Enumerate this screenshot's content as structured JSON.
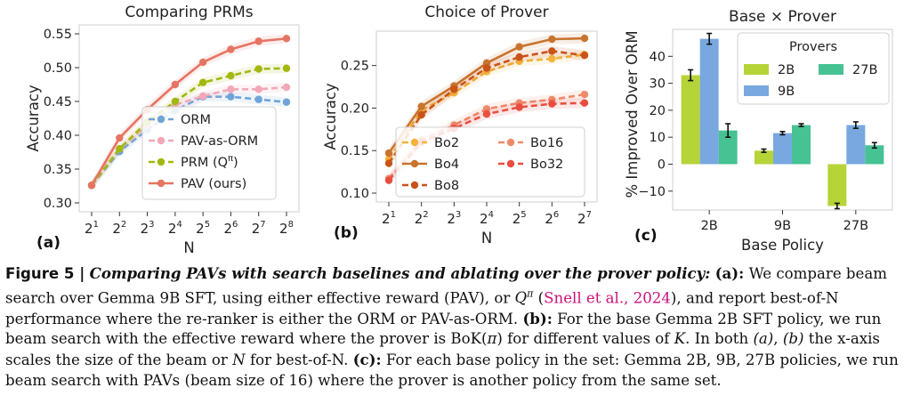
{
  "colors": {
    "orm": "#6fa4d8",
    "pav_orm": "#f3a8b8",
    "prm": "#a3b80f",
    "pav": "#e67462",
    "bo2": "#f3b33c",
    "bo4": "#c8742e",
    "bo8": "#c8541a",
    "bo16": "#ee8a6a",
    "bo32": "#e84e40",
    "p2b": "#b6d338",
    "p9b": "#78a8df",
    "p27b": "#47c293",
    "link": "#c8107a"
  },
  "chart_data": [
    {
      "type": "line",
      "title": "Comparing PRMs",
      "panel_label": "(a)",
      "xlabel": "N",
      "ylabel": "Accuracy",
      "x": [
        1,
        2,
        3,
        4,
        5,
        6,
        7,
        8
      ],
      "xticks": [
        "2",
        "2",
        "2",
        "2",
        "2",
        "2",
        "2",
        "2"
      ],
      "xtick_exponents": [
        "1",
        "2",
        "3",
        "4",
        "5",
        "6",
        "7",
        "8"
      ],
      "ylim": [
        0.3,
        0.55
      ],
      "yticks": [
        0.3,
        0.35,
        0.4,
        0.45,
        0.5,
        0.55
      ],
      "ytick_labels": [
        "0.30",
        "0.35",
        "0.40",
        "0.45",
        "0.50",
        "0.55"
      ],
      "legend_position": "lower-right",
      "series": [
        {
          "name": "ORM",
          "color_key": "orm",
          "dashed": true,
          "values": [
            0.326,
            0.376,
            0.408,
            0.437,
            0.457,
            0.457,
            0.453,
            0.449
          ]
        },
        {
          "name": "PAV-as-ORM",
          "color_key": "pav_orm",
          "dashed": true,
          "values": [
            0.326,
            0.38,
            0.415,
            0.445,
            0.458,
            0.468,
            0.468,
            0.471
          ]
        },
        {
          "name": "PRM (Q",
          "name_sup": "π",
          "name_end": ")",
          "color_key": "prm",
          "dashed": true,
          "values": [
            0.326,
            0.38,
            0.42,
            0.45,
            0.478,
            0.488,
            0.498,
            0.499
          ]
        },
        {
          "name": "PAV (ours)",
          "color_key": "pav",
          "dashed": false,
          "values": [
            0.326,
            0.396,
            0.438,
            0.475,
            0.508,
            0.527,
            0.539,
            0.543
          ]
        }
      ]
    },
    {
      "type": "line",
      "title": "Choice of Prover",
      "panel_label": "(b)",
      "xlabel": "N",
      "ylabel": "Accuracy",
      "x": [
        1,
        2,
        3,
        4,
        5,
        6,
        7
      ],
      "xticks": [
        "2",
        "2",
        "2",
        "2",
        "2",
        "2",
        "2"
      ],
      "xtick_exponents": [
        "1",
        "2",
        "3",
        "4",
        "5",
        "6",
        "7"
      ],
      "ylim": [
        0.1,
        0.28
      ],
      "yticks": [
        0.1,
        0.15,
        0.2,
        0.25
      ],
      "ytick_labels": [
        "0.10",
        "0.15",
        "0.20",
        "0.25"
      ],
      "legend_position": "lower-right",
      "series": [
        {
          "name": "Bo2",
          "color_key": "bo2",
          "dashed": true,
          "values": [
            0.14,
            0.197,
            0.218,
            0.243,
            0.255,
            0.258,
            0.263
          ]
        },
        {
          "name": "Bo4",
          "color_key": "bo4",
          "dashed": false,
          "values": [
            0.147,
            0.202,
            0.226,
            0.253,
            0.272,
            0.281,
            0.282
          ]
        },
        {
          "name": "Bo8",
          "color_key": "bo8",
          "dashed": true,
          "values": [
            0.135,
            0.192,
            0.222,
            0.247,
            0.26,
            0.267,
            0.262
          ]
        },
        {
          "name": "Bo16",
          "color_key": "bo16",
          "dashed": true,
          "values": [
            0.117,
            0.162,
            0.18,
            0.199,
            0.206,
            0.21,
            0.216
          ]
        },
        {
          "name": "Bo32",
          "color_key": "bo32",
          "dashed": true,
          "values": [
            0.115,
            0.16,
            0.176,
            0.193,
            0.201,
            0.205,
            0.206
          ]
        }
      ]
    },
    {
      "type": "bar",
      "title": "Base × Prover",
      "panel_label": "(c)",
      "xlabel": "Base Policy",
      "ylabel": "% Improved Over ORM",
      "categories": [
        "2B",
        "9B",
        "27B"
      ],
      "ylim": [
        -17,
        50
      ],
      "yticks": [
        -10,
        0,
        10,
        20,
        30,
        40
      ],
      "ytick_labels": [
        "−10",
        "0",
        "10",
        "20",
        "30",
        "40"
      ],
      "legend_title": "Provers",
      "legend_position": "top-right",
      "series": [
        {
          "name": "2B",
          "color_key": "p2b",
          "values": [
            33,
            5,
            -15.5
          ],
          "errors": [
            2,
            0.6,
            1
          ]
        },
        {
          "name": "9B",
          "color_key": "p9b",
          "values": [
            46.5,
            11.5,
            14.5
          ],
          "errors": [
            2,
            0.6,
            1.2
          ]
        },
        {
          "name": "27B",
          "color_key": "p27b",
          "values": [
            12.5,
            14.5,
            7
          ],
          "errors": [
            2.5,
            0.5,
            1
          ]
        }
      ]
    }
  ],
  "caption": {
    "label": "Figure 5 |",
    "title": "Comparing PAVs with search baselines and ablating over the prover policy:",
    "a_label": "(a):",
    "a_text_1": "We compare beam search over Gemma 9B SFT, using either effective reward (PAV), or",
    "a_q": "Q",
    "a_pi": "π",
    "a_cite": "Snell et al., 2024",
    "a_text_2": "and report best-of-N performance where the re-ranker is either the ORM or PAV-as-ORM.",
    "b_label": "(b):",
    "b_text_1": "For the base Gemma 2B SFT policy, we run beam search with the effective reward where the prover is BoK(",
    "b_pi": "π",
    "b_text_2": ") for different values of",
    "b_k": "K",
    "b_text_3": ". In both",
    "b_ref_a": "(a)",
    "b_ref_b": "(b)",
    "b_text_4": "the x-axis scales the size of the beam or",
    "b_n": "N",
    "b_text_5": "for best-of-N.",
    "c_label": "(c):",
    "c_text": "For each base policy in the set: Gemma 2B, 9B, 27B policies, we run beam search with PAVs (beam size of 16) where the prover is another policy from the same set."
  }
}
